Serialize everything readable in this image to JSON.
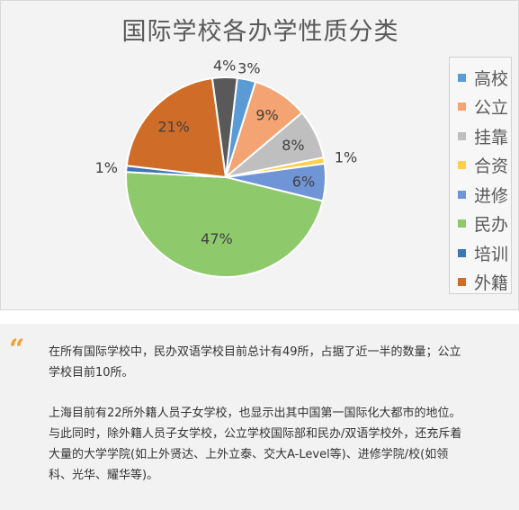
{
  "chart_data": {
    "type": "pie",
    "title": "国际学校各办学性质分类",
    "slices": [
      {
        "label": "高校",
        "value": 3,
        "data_label": "3%",
        "color": "#5b9bd5"
      },
      {
        "label": "公立",
        "value": 9,
        "data_label": "9%",
        "color": "#f4a472"
      },
      {
        "label": "挂靠",
        "value": 8,
        "data_label": "8%",
        "color": "#bfbfbf"
      },
      {
        "label": "合资",
        "value": 1,
        "data_label": "1%",
        "color": "#ffd04a"
      },
      {
        "label": "进修",
        "value": 6,
        "data_label": "6%",
        "color": "#6f95d6"
      },
      {
        "label": "民办",
        "value": 47,
        "data_label": "47%",
        "color": "#8ec96c"
      },
      {
        "label": "培训",
        "value": 1,
        "data_label": "1%",
        "color": "#3e75b4"
      },
      {
        "label": "外籍",
        "value": 21,
        "data_label": "21%",
        "color": "#cf6d28"
      },
      {
        "label": "",
        "value": 4,
        "data_label": "4%",
        "color": "#595959"
      }
    ],
    "legend": [
      "高校",
      "公立",
      "挂靠",
      "合资",
      "进修",
      "民办",
      "培训",
      "外籍"
    ],
    "legend_position": "right"
  },
  "quote": {
    "mark": "“",
    "paragraphs": [
      "在所有国际学校中，民办双语学校目前总计有49所，占据了近一半的数量；公立学校目前10所。",
      "上海目前有22所外籍人员子女学校，也显示出其中国第一国际化大都市的地位。与此同时，除外籍人员子女学校，公立学校国际部和民办/双语学校外，还充斥着大量的大学学院(如上外贤达、上外立泰、交大A-Level等)、进修学院/校(如领科、光华、耀华等)。"
    ]
  }
}
